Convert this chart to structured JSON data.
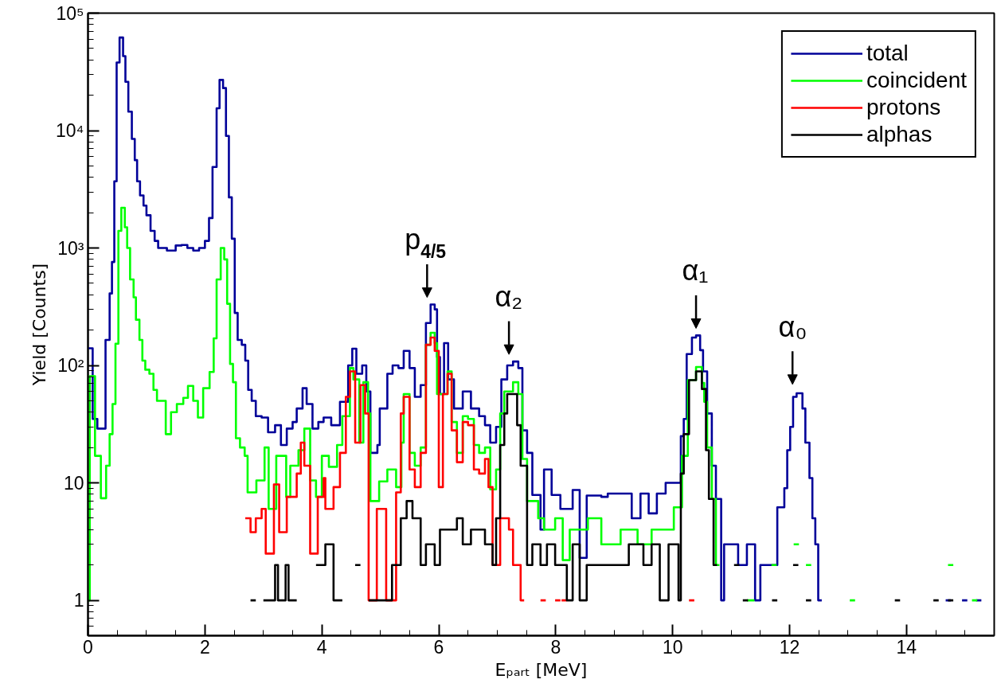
{
  "chart_data": {
    "type": "step",
    "xlabel": "Eₚₐᵣₜ [MeV]",
    "ylabel": "Yield [Counts]",
    "log": "y",
    "xlim": [
      0,
      15.5
    ],
    "ylim": [
      0.5,
      100000
    ],
    "xticks": [
      0,
      2,
      4,
      6,
      8,
      10,
      12,
      14
    ],
    "yticks": [
      1,
      10,
      {
        "value": 100,
        "label": "10²"
      },
      {
        "value": 1000,
        "label": "10³"
      },
      {
        "value": 10000,
        "label": "10⁴"
      },
      {
        "value": 100000,
        "label": "10⁵"
      }
    ],
    "grid": false,
    "legend": "top right",
    "line_style": "solid",
    "marker": "none",
    "series": [
      {
        "name": "total",
        "color": "#000099",
        "x": [
          0,
          0.08,
          0.16,
          0.3,
          0.37,
          0.41,
          0.45,
          0.49,
          0.54,
          0.6,
          0.64,
          0.69,
          0.75,
          0.8,
          0.84,
          0.89,
          0.95,
          1.0,
          1.07,
          1.14,
          1.2,
          1.35,
          1.5,
          1.6,
          1.7,
          1.8,
          1.9,
          2.0,
          2.07,
          2.13,
          2.2,
          2.25,
          2.31,
          2.36,
          2.41,
          2.46,
          2.51,
          2.56,
          2.63,
          2.69,
          2.74,
          2.8,
          2.87,
          2.97,
          3.08,
          3.2,
          3.3,
          3.4,
          3.5,
          3.57,
          3.67,
          3.74,
          3.84,
          3.94,
          4.03,
          4.16,
          4.31,
          4.45,
          4.52,
          4.59,
          4.69,
          4.76,
          4.83,
          4.95,
          4.99,
          5.12,
          5.21,
          5.31,
          5.4,
          5.5,
          5.59,
          5.69,
          5.78,
          5.86,
          5.93,
          5.97,
          6.02,
          6.09,
          6.16,
          6.26,
          6.41,
          6.55,
          6.69,
          6.79,
          6.88,
          6.98,
          7.07,
          7.17,
          7.27,
          7.36,
          7.43,
          7.51,
          7.6,
          7.74,
          7.8,
          7.93,
          8.08,
          8.29,
          8.41,
          8.53,
          8.78,
          8.89,
          9.16,
          9.3,
          9.45,
          9.59,
          9.73,
          9.88,
          10.07,
          10.14,
          10.19,
          10.24,
          10.33,
          10.4,
          10.47,
          10.52,
          10.59,
          10.67,
          10.74,
          10.83,
          10.88,
          10.98,
          11.12,
          11.27,
          11.41,
          11.5,
          11.7,
          11.79,
          11.91,
          11.96,
          12.01,
          12.06,
          12.12,
          12.22,
          12.27,
          12.34,
          12.39,
          12.44,
          12.49,
          12.55,
          14.67,
          14.76,
          14.95,
          15.04,
          15.19,
          15.28
        ],
        "values": [
          140,
          35,
          29,
          165,
          410,
          760,
          3700,
          38000,
          62000,
          43000,
          26000,
          14500,
          8500,
          5600,
          3700,
          2800,
          2300,
          1900,
          1400,
          1150,
          1000,
          950,
          1050,
          1060,
          1000,
          950,
          1000,
          1150,
          1800,
          4900,
          15500,
          27000,
          23000,
          9000,
          2700,
          1200,
          280,
          165,
          150,
          110,
          62,
          50,
          37,
          36,
          27,
          31,
          21,
          29,
          33,
          43,
          64,
          47,
          29,
          33,
          36,
          31,
          49,
          100,
          139,
          85,
          100,
          60,
          18,
          21,
          43,
          85,
          100,
          95,
          133,
          95,
          54,
          68,
          230,
          330,
          300,
          118,
          57,
          155,
          76,
          43,
          60,
          43,
          37,
          31,
          22,
          30,
          76,
          100,
          108,
          95,
          28,
          18,
          7.9,
          4,
          13,
          7.9,
          6,
          8.7,
          2.3,
          7.8,
          7.6,
          8.1,
          8.1,
          5,
          8.1,
          5.5,
          8.1,
          10,
          10,
          25,
          35,
          125,
          173,
          180,
          135,
          89,
          39,
          14,
          7.3,
          1,
          3,
          3,
          2,
          3,
          1,
          2,
          2,
          6.2,
          9,
          19,
          30,
          54,
          58,
          43,
          22,
          11,
          5,
          3,
          1,
          null,
          1,
          null,
          1,
          null,
          1,
          1
        ]
      },
      {
        "name": "coincident",
        "color": "#00ff00",
        "x": [
          0,
          0.03,
          0.12,
          0.22,
          0.31,
          0.37,
          0.42,
          0.47,
          0.52,
          0.57,
          0.63,
          0.67,
          0.72,
          0.78,
          0.82,
          0.88,
          0.93,
          0.98,
          1.05,
          1.12,
          1.18,
          1.29,
          1.33,
          1.42,
          1.52,
          1.63,
          1.71,
          1.8,
          1.88,
          1.97,
          2.08,
          2.15,
          2.2,
          2.27,
          2.33,
          2.38,
          2.43,
          2.48,
          2.53,
          2.6,
          2.68,
          2.73,
          2.88,
          3.02,
          3.09,
          3.22,
          3.39,
          3.46,
          3.6,
          3.7,
          3.8,
          3.9,
          4.0,
          4.12,
          4.26,
          4.35,
          4.48,
          4.54,
          4.64,
          4.71,
          4.79,
          4.83,
          4.98,
          5.12,
          5.27,
          5.36,
          5.4,
          5.5,
          5.59,
          5.69,
          5.78,
          5.86,
          5.93,
          5.97,
          6.07,
          6.15,
          6.22,
          6.31,
          6.41,
          6.5,
          6.6,
          6.69,
          6.79,
          6.88,
          6.98,
          7.05,
          7.12,
          7.27,
          7.36,
          7.43,
          7.51,
          7.7,
          7.8,
          7.99,
          8.12,
          8.24,
          8.55,
          8.78,
          9.11,
          9.4,
          9.64,
          9.88,
          10.02,
          10.16,
          10.26,
          10.4,
          10.5,
          10.54,
          10.59,
          10.67,
          10.74,
          10.8,
          11.27,
          11.4,
          11.69,
          11.78,
          12.07,
          12.16,
          12.28,
          12.37,
          13.03,
          13.12,
          14.71,
          14.8,
          15.12,
          15.21
        ],
        "values": [
          1,
          81,
          17,
          7.4,
          14,
          26,
          47,
          153,
          1400,
          2200,
          1500,
          1000,
          540,
          380,
          245,
          165,
          110,
          92,
          85,
          62,
          50,
          50,
          26,
          40,
          47,
          53,
          67,
          50,
          36,
          64,
          88,
          170,
          540,
          1000,
          800,
          335,
          103,
          72,
          24,
          20,
          17,
          8.3,
          10.5,
          20,
          6,
          17,
          7.6,
          14,
          19,
          29,
          10.5,
          7.6,
          17,
          13.7,
          21,
          37,
          95,
          76,
          22,
          72,
          39,
          7,
          10.3,
          13,
          9.2,
          22,
          57,
          18,
          14,
          20,
          150,
          190,
          155,
          57,
          57,
          89,
          33,
          18,
          37,
          35,
          21,
          18,
          20,
          8.8,
          13,
          39,
          60,
          72,
          57,
          16,
          7,
          5,
          4,
          5,
          2.2,
          4,
          5,
          3,
          4,
          3,
          4,
          4,
          6.2,
          17,
          75,
          97,
          71,
          49,
          20,
          7.3,
          2,
          null,
          1,
          null,
          2,
          null,
          3,
          null,
          2,
          null,
          1,
          null,
          2,
          null,
          1,
          1
        ]
      },
      {
        "name": "protons",
        "color": "#ff0000",
        "x": [
          2.69,
          2.78,
          2.87,
          2.97,
          3.04,
          3.18,
          3.27,
          3.4,
          3.57,
          3.64,
          3.7,
          3.8,
          3.93,
          4.03,
          4.06,
          4.2,
          4.31,
          4.41,
          4.48,
          4.57,
          4.66,
          4.74,
          4.8,
          4.94,
          5.1,
          5.27,
          5.35,
          5.4,
          5.5,
          5.59,
          5.69,
          5.78,
          5.86,
          5.93,
          6.0,
          6.07,
          6.15,
          6.22,
          6.31,
          6.41,
          6.5,
          6.6,
          6.69,
          6.79,
          6.85,
          6.92,
          7.05,
          7.2,
          7.27,
          7.4,
          7.46,
          7.74,
          7.83,
          7.99,
          8.08,
          8.1,
          8.19,
          10.28,
          10.37
        ],
        "values": [
          5,
          3.8,
          5,
          6,
          2.5,
          9.7,
          3.8,
          7.6,
          12,
          22,
          14,
          2.5,
          7.6,
          11,
          6,
          9.2,
          18,
          54,
          89,
          22,
          68,
          39,
          1,
          6,
          1,
          8.3,
          39,
          54,
          13,
          9.2,
          18,
          150,
          173,
          133,
          9.2,
          57,
          85,
          28,
          15,
          33,
          31,
          13,
          12,
          16,
          9.2,
          2,
          5,
          4,
          2,
          1,
          null,
          1,
          null,
          1,
          null,
          1,
          null,
          1,
          1
        ]
      },
      {
        "name": "alphas",
        "color": "#000000",
        "x": [
          2.78,
          2.87,
          3.0,
          3.2,
          3.25,
          3.38,
          3.43,
          3.5,
          3.57,
          3.9,
          4.06,
          4.2,
          4.35,
          4.57,
          4.66,
          4.8,
          5.2,
          5.35,
          5.45,
          5.55,
          5.69,
          5.78,
          5.93,
          6.02,
          6.16,
          6.31,
          6.41,
          6.55,
          6.65,
          6.79,
          6.92,
          6.98,
          7.05,
          7.12,
          7.17,
          7.27,
          7.34,
          7.4,
          7.51,
          7.6,
          7.74,
          7.85,
          7.99,
          8.05,
          8.19,
          8.29,
          8.41,
          8.53,
          8.78,
          9.11,
          9.25,
          9.5,
          9.64,
          9.78,
          9.93,
          10.1,
          10.14,
          10.19,
          10.28,
          10.4,
          10.5,
          10.57,
          10.62,
          10.7,
          10.76,
          11.05,
          11.14,
          11.2,
          11.29,
          11.7,
          11.79,
          12.06,
          12.15,
          12.28,
          12.37,
          13.8,
          13.89,
          14.46,
          14.55,
          14.71,
          14.8
        ],
        "values": [
          1,
          null,
          1,
          2,
          1,
          2,
          1,
          1,
          null,
          2,
          3,
          1,
          null,
          2,
          null,
          1,
          2,
          5,
          7,
          5,
          2,
          3,
          2,
          4,
          4,
          5,
          3,
          4,
          4,
          3,
          2,
          5,
          21,
          39,
          57,
          57,
          31,
          14,
          2,
          3,
          2,
          3,
          2,
          2,
          1,
          3,
          1,
          2,
          2,
          2,
          3,
          2,
          3,
          1,
          3,
          1,
          12,
          26,
          75,
          89,
          63,
          19,
          7.3,
          2,
          null,
          2,
          null,
          1,
          null,
          1,
          null,
          2,
          null,
          1,
          null,
          1,
          null,
          1,
          null,
          1,
          1
        ]
      }
    ],
    "annotations": [
      {
        "text": "p$_{4/5}$",
        "x": 5.8,
        "y": 330
      },
      {
        "text": "α₂",
        "x": 7.2,
        "y": 108
      },
      {
        "text": "α₁",
        "x": 10.4,
        "y": 180
      },
      {
        "text": "α₀",
        "x": 12.05,
        "y": 60
      }
    ]
  }
}
